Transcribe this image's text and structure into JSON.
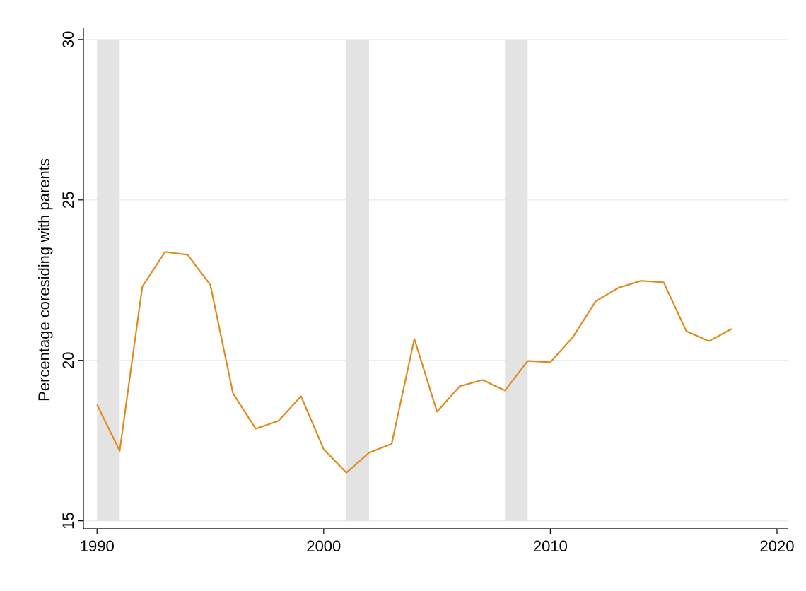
{
  "chart_data": {
    "type": "line",
    "y_label": "Percentage coresiding with parents",
    "x": [
      1990,
      1991,
      1992,
      1993,
      1994,
      1995,
      1996,
      1997,
      1998,
      1999,
      2000,
      2001,
      2002,
      2003,
      2004,
      2005,
      2006,
      2007,
      2008,
      2009,
      2010,
      2011,
      2012,
      2013,
      2014,
      2015,
      2016,
      2017,
      2018
    ],
    "values": [
      18.62,
      17.18,
      22.3,
      23.38,
      23.29,
      22.35,
      18.97,
      17.87,
      18.11,
      18.88,
      17.23,
      16.5,
      17.12,
      17.4,
      20.67,
      18.4,
      19.19,
      19.39,
      19.06,
      19.98,
      19.94,
      20.73,
      21.84,
      22.26,
      22.48,
      22.43,
      20.91,
      20.6,
      20.98
    ],
    "color": "#e08a1e",
    "shaded_periods": [
      [
        1990,
        1991
      ],
      [
        2001,
        2002
      ],
      [
        2008,
        2009
      ]
    ],
    "shade_color": "#e3e3e3",
    "xlim": [
      1989.4,
      2020.5
    ],
    "xticks": [
      1990,
      2000,
      2010,
      2020
    ],
    "ylim": [
      14.75,
      30.35
    ],
    "yticks": [
      15,
      20,
      25,
      30
    ],
    "grid": true
  }
}
